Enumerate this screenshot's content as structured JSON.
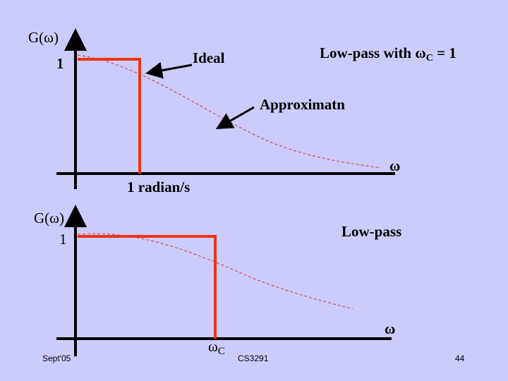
{
  "top_panel": {
    "y_label": "G(ω)",
    "y_level": "1",
    "ideal_label": "Ideal",
    "lowpass_label": {
      "prefix": "Low-pass with ω",
      "subscript": "C",
      "suffix": " = 1"
    },
    "approx_label": "Approximatn",
    "x_label": "ω",
    "cutoff_label": "1 radian/s"
  },
  "bottom_panel": {
    "y_label": "G(ω)",
    "y_level": "1",
    "lowpass_label": "Low-pass",
    "x_label": "ω",
    "cutoff_label": {
      "symbol": "ω",
      "subscript": "C"
    }
  },
  "footer": {
    "date": "Sept'05",
    "course": "CS3291",
    "page": "44"
  }
}
